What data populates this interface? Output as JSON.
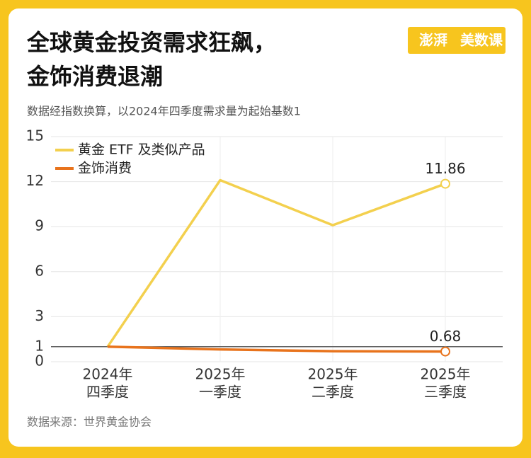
{
  "header": {
    "title_lines": [
      "全球黄金投资需求狂飙，",
      "金饰消费退潮"
    ],
    "logo": [
      "澎湃",
      "美数课"
    ],
    "subtitle": "数据经指数换算，以2024年四季度需求量为起始基数1"
  },
  "chart_data": {
    "type": "line",
    "categories": [
      [
        "2024年",
        "四季度"
      ],
      [
        "2025年",
        "一季度"
      ],
      [
        "2025年",
        "二季度"
      ],
      [
        "2025年",
        "三季度"
      ]
    ],
    "series": [
      {
        "name": "黄金 ETF 及类似产品",
        "color": "#f3d04e",
        "values": [
          1,
          12.1,
          9.1,
          11.86
        ]
      },
      {
        "name": "金饰消费",
        "color": "#e8731c",
        "values": [
          1,
          0.82,
          0.7,
          0.68
        ]
      }
    ],
    "ylim": [
      0,
      15
    ],
    "yticks": [
      0,
      1,
      3,
      6,
      9,
      12,
      15
    ],
    "grid": true,
    "reference_line": 1,
    "legend": "top-left"
  },
  "footer": {
    "source": "数据来源：世界黄金协会"
  }
}
